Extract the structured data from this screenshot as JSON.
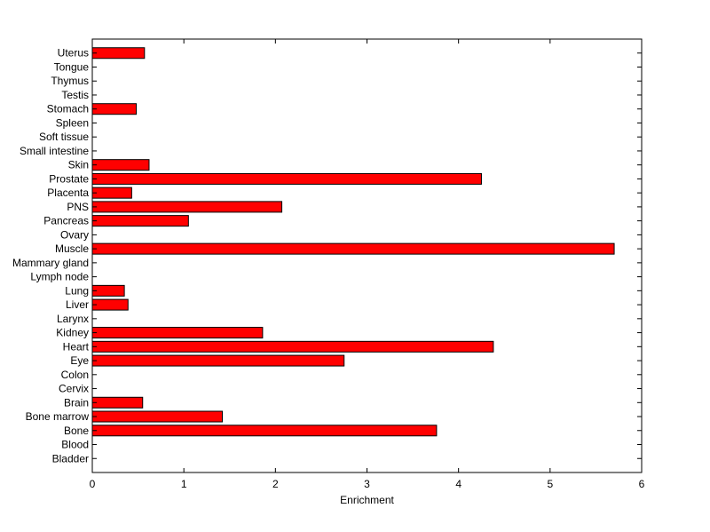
{
  "chart_data": {
    "type": "bar",
    "orientation": "horizontal",
    "categories": [
      "Bladder",
      "Blood",
      "Bone",
      "Bone marrow",
      "Brain",
      "Cervix",
      "Colon",
      "Eye",
      "Heart",
      "Kidney",
      "Larynx",
      "Liver",
      "Lung",
      "Lymph node",
      "Mammary gland",
      "Muscle",
      "Ovary",
      "Pancreas",
      "PNS",
      "Placenta",
      "Prostate",
      "Skin",
      "Small intestine",
      "Soft tissue",
      "Spleen",
      "Stomach",
      "Testis",
      "Thymus",
      "Tongue",
      "Uterus"
    ],
    "values": [
      0,
      0,
      3.76,
      1.42,
      0.55,
      0,
      0,
      2.75,
      4.38,
      1.86,
      0,
      0.39,
      0.35,
      0,
      0,
      5.7,
      0,
      1.05,
      2.07,
      0.43,
      4.25,
      0.62,
      0,
      0,
      0,
      0.48,
      0,
      0,
      0,
      0.57
    ],
    "xlabel": "Enrichment",
    "xlim": [
      0,
      6
    ],
    "xticks": [
      0,
      1,
      2,
      3,
      4,
      5,
      6
    ],
    "bar_color": "#ff0000",
    "edge_color": "#000000",
    "grid": false
  }
}
